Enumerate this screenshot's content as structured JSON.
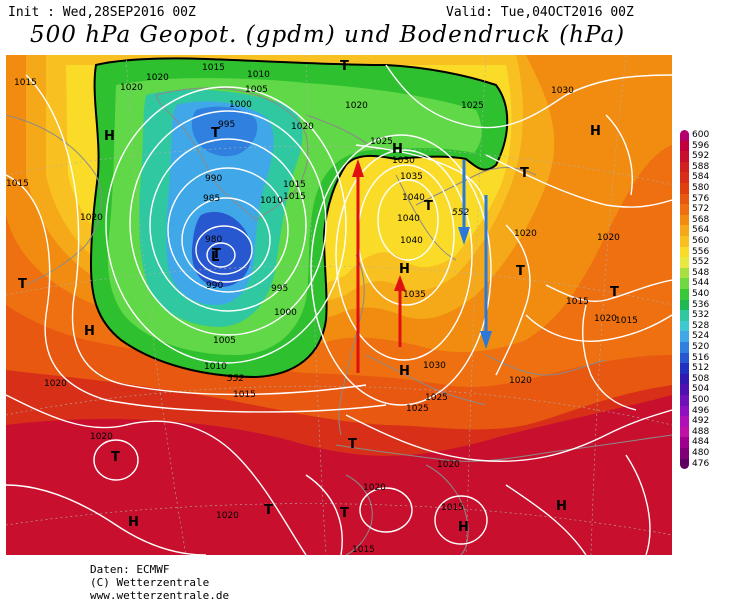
{
  "header": {
    "init": "Init : Wed,28SEP2016 00Z",
    "valid": "Valid: Tue,04OCT2016 00Z",
    "title": "500 hPa Geopot. (gpdm) und Bodendruck (hPa)"
  },
  "legend": {
    "levels": [
      "600",
      "596",
      "592",
      "588",
      "584",
      "580",
      "576",
      "572",
      "568",
      "564",
      "560",
      "556",
      "552",
      "548",
      "544",
      "540",
      "536",
      "532",
      "528",
      "524",
      "520",
      "516",
      "512",
      "508",
      "504",
      "500",
      "496",
      "492",
      "488",
      "484",
      "480",
      "476"
    ],
    "colors": [
      "#b3006b",
      "#c2003b",
      "#c8102e",
      "#d02020",
      "#d83018",
      "#e04010",
      "#e85810",
      "#ee7010",
      "#f28c10",
      "#f5a818",
      "#f8c020",
      "#fadc28",
      "#e8e840",
      "#a8e040",
      "#70d840",
      "#38c838",
      "#20b850",
      "#30c8a0",
      "#40c8d0",
      "#40a8e8",
      "#3080e0",
      "#2858d0",
      "#2030c0",
      "#3018b0",
      "#5010b0",
      "#7010b8",
      "#9010c0",
      "#b010b8",
      "#c010a8",
      "#a00090",
      "#800078",
      "#600060"
    ]
  },
  "map": {
    "isobars": [
      {
        "label": "1015",
        "x": "1015a"
      },
      {
        "label": "1020",
        "x": "1020a"
      }
    ],
    "labels": [
      {
        "text": "1015"
      },
      {
        "text": "1020"
      },
      {
        "text": "1020"
      },
      {
        "text": "1015"
      },
      {
        "text": "1010"
      },
      {
        "text": "1005"
      },
      {
        "text": "1000"
      },
      {
        "text": "995"
      },
      {
        "text": "990"
      },
      {
        "text": "985"
      },
      {
        "text": "980"
      },
      {
        "text": "990"
      },
      {
        "text": "995"
      },
      {
        "text": "1000"
      },
      {
        "text": "1005"
      },
      {
        "text": "1010"
      },
      {
        "text": "1015"
      },
      {
        "text": "1020"
      },
      {
        "text": "1020"
      },
      {
        "text": "1015"
      },
      {
        "text": "1010"
      },
      {
        "text": "1020"
      },
      {
        "text": "1025"
      },
      {
        "text": "1030"
      },
      {
        "text": "1035"
      },
      {
        "text": "1040"
      },
      {
        "text": "1040"
      },
      {
        "text": "1040"
      },
      {
        "text": "1035"
      },
      {
        "text": "1030"
      },
      {
        "text": "1025"
      },
      {
        "text": "1025"
      },
      {
        "text": "1020"
      },
      {
        "text": "1015"
      },
      {
        "text": "1015"
      },
      {
        "text": "1020"
      },
      {
        "text": "1025"
      },
      {
        "text": "1030"
      },
      {
        "text": "1020"
      },
      {
        "text": "1020"
      },
      {
        "text": "1020"
      },
      {
        "text": "1020"
      },
      {
        "text": "1015"
      },
      {
        "text": "1020"
      },
      {
        "text": "1015"
      },
      {
        "text": "1015"
      },
      {
        "text": "1015"
      },
      {
        "text": "1020"
      },
      {
        "text": "1020"
      },
      {
        "text": "552"
      },
      {
        "text": "552"
      }
    ],
    "pressure_centers": [
      {
        "text": "T"
      },
      {
        "text": "T"
      },
      {
        "text": "L"
      },
      {
        "text": "T"
      },
      {
        "text": "H"
      },
      {
        "text": "H"
      },
      {
        "text": "H"
      },
      {
        "text": "T"
      },
      {
        "text": "H"
      },
      {
        "text": "T"
      },
      {
        "text": "T"
      },
      {
        "text": "H"
      },
      {
        "text": "T"
      },
      {
        "text": "T"
      },
      {
        "text": "H"
      },
      {
        "text": "T"
      },
      {
        "text": "T"
      },
      {
        "text": "H"
      },
      {
        "text": "H"
      },
      {
        "text": "T"
      },
      {
        "text": "H"
      },
      {
        "text": "T"
      }
    ],
    "arrows": {
      "warm_color": "#e01010",
      "cold_color": "#2a78d8"
    }
  },
  "credits": {
    "line1": "Daten: ECMWF",
    "line2": "(C) Wetterzentrale",
    "line3": "www.wetterzentrale.de"
  }
}
